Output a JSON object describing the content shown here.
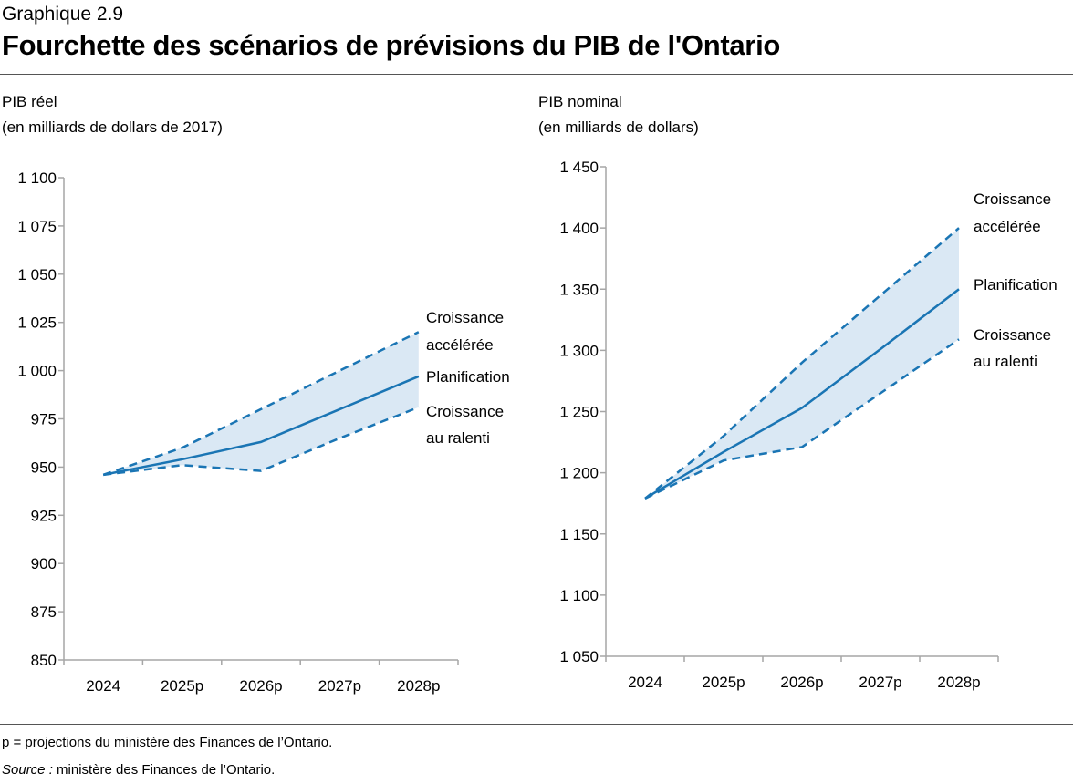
{
  "header": {
    "figure_number": "Graphique 2.9",
    "title": "Fourchette des scénarios de prévisions du PIB de l'Ontario"
  },
  "colors": {
    "line": "#1a75b4",
    "band": "#dae8f4",
    "axis": "#a6a6a6"
  },
  "chart_data": [
    {
      "type": "line",
      "ylabel_line1": "PIB réel",
      "ylabel_line2": "(en milliards de dollars de 2017)",
      "categories": [
        "2024",
        "2025p",
        "2026p",
        "2027p",
        "2028p"
      ],
      "ylim": [
        850,
        1100
      ],
      "yticks": [
        850,
        875,
        900,
        925,
        950,
        975,
        1000,
        1025,
        1050,
        1075,
        1100
      ],
      "ytick_labels": [
        "850",
        "875",
        "900",
        "925",
        "950",
        "975",
        "1 000",
        "1 025",
        "1 050",
        "1 075",
        "1 100"
      ],
      "grid": false,
      "shaded_range": true,
      "series": [
        {
          "name": "Croissance accélérée",
          "label_lines": [
            "Croissance",
            "accélérée"
          ],
          "style": "dashed",
          "values": [
            946,
            960,
            980,
            1000,
            1020
          ]
        },
        {
          "name": "Planification",
          "label_lines": [
            "Planification"
          ],
          "style": "solid",
          "values": [
            946,
            954,
            963,
            980,
            997
          ]
        },
        {
          "name": "Croissance au ralenti",
          "label_lines": [
            "Croissance",
            "au ralenti"
          ],
          "style": "dashed",
          "values": [
            946,
            951,
            948,
            965,
            981
          ]
        }
      ]
    },
    {
      "type": "line",
      "ylabel_line1": "PIB nominal",
      "ylabel_line2": "(en milliards de dollars)",
      "categories": [
        "2024",
        "2025p",
        "2026p",
        "2027p",
        "2028p"
      ],
      "ylim": [
        1050,
        1450
      ],
      "yticks": [
        1050,
        1100,
        1150,
        1200,
        1250,
        1300,
        1350,
        1400,
        1450
      ],
      "ytick_labels": [
        "1 050",
        "1 100",
        "1 150",
        "1 200",
        "1 250",
        "1 300",
        "1 350",
        "1 400",
        "1 450"
      ],
      "grid": false,
      "shaded_range": true,
      "series": [
        {
          "name": "Croissance accélérée",
          "label_lines": [
            "Croissance",
            "accélérée"
          ],
          "style": "dashed",
          "values": [
            1179,
            1230,
            1290,
            1345,
            1400
          ]
        },
        {
          "name": "Planification",
          "label_lines": [
            "Planification"
          ],
          "style": "solid",
          "values": [
            1179,
            1217,
            1253,
            1301,
            1350
          ]
        },
        {
          "name": "Croissance au ralenti",
          "label_lines": [
            "Croissance",
            "au ralenti"
          ],
          "style": "dashed",
          "values": [
            1179,
            1210,
            1221,
            1265,
            1309
          ]
        }
      ]
    }
  ],
  "footer": {
    "note": "p = projections du ministère des Finances de l’Ontario.",
    "source_label": "Source :",
    "source_text": " ministère des Finances de l’Ontario."
  }
}
